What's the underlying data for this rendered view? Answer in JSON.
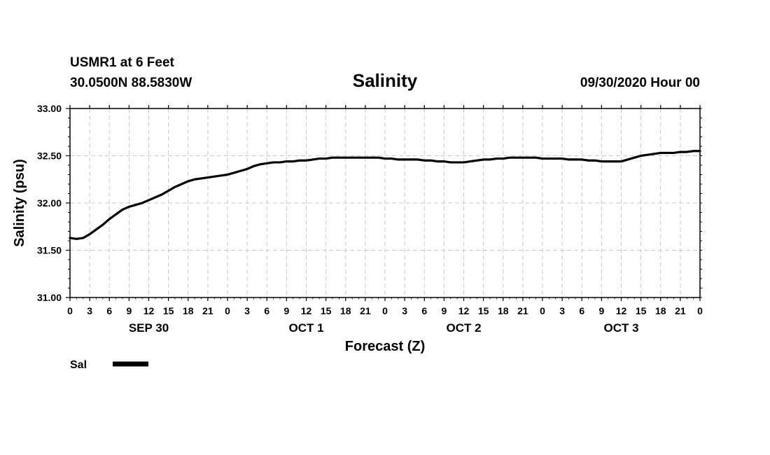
{
  "header": {
    "station": "USMR1 at 6 Feet",
    "location": "30.0500N 88.5830W",
    "run": "09/30/2020 Hour 00"
  },
  "chart_data": {
    "type": "line",
    "title": "Salinity",
    "xlabel": "Forecast (Z)",
    "ylabel": "Salinity (psu)",
    "ylim": [
      31.0,
      33.0
    ],
    "xlim": [
      0,
      96
    ],
    "y_ticks": [
      "31.00",
      "31.50",
      "32.00",
      "32.50",
      "33.00"
    ],
    "x_tick_hours": [
      0,
      3,
      6,
      9,
      12,
      15,
      18,
      21,
      24,
      27,
      30,
      33,
      36,
      39,
      42,
      45,
      48,
      51,
      54,
      57,
      60,
      63,
      66,
      69,
      72,
      75,
      78,
      81,
      84,
      87,
      90,
      93,
      96
    ],
    "x_tick_labels": [
      "0",
      "3",
      "6",
      "9",
      "12",
      "15",
      "18",
      "21",
      "0",
      "3",
      "6",
      "9",
      "12",
      "15",
      "18",
      "21",
      "0",
      "3",
      "6",
      "9",
      "12",
      "15",
      "18",
      "21",
      "0",
      "3",
      "6",
      "9",
      "12",
      "15",
      "18",
      "21",
      "0"
    ],
    "day_labels": [
      {
        "label": "SEP 30",
        "hour": 12
      },
      {
        "label": "OCT 1",
        "hour": 36
      },
      {
        "label": "OCT 2",
        "hour": 60
      },
      {
        "label": "OCT 3",
        "hour": 84
      }
    ],
    "grid": true,
    "legend_position": "bottom-left",
    "series": [
      {
        "name": "Sal",
        "color": "#000000",
        "x": [
          0,
          1,
          2,
          3,
          4,
          5,
          6,
          7,
          8,
          9,
          10,
          11,
          12,
          13,
          14,
          15,
          16,
          17,
          18,
          19,
          20,
          21,
          22,
          23,
          24,
          25,
          26,
          27,
          28,
          29,
          30,
          31,
          32,
          33,
          34,
          35,
          36,
          37,
          38,
          39,
          40,
          41,
          42,
          43,
          44,
          45,
          46,
          47,
          48,
          49,
          50,
          51,
          52,
          53,
          54,
          55,
          56,
          57,
          58,
          59,
          60,
          61,
          62,
          63,
          64,
          65,
          66,
          67,
          68,
          69,
          70,
          71,
          72,
          73,
          74,
          75,
          76,
          77,
          78,
          79,
          80,
          81,
          82,
          83,
          84,
          85,
          86,
          87,
          88,
          89,
          90,
          91,
          92,
          93,
          94,
          95,
          96
        ],
        "y": [
          31.63,
          31.62,
          31.63,
          31.67,
          31.72,
          31.77,
          31.83,
          31.88,
          31.93,
          31.96,
          31.98,
          32.0,
          32.03,
          32.06,
          32.09,
          32.13,
          32.17,
          32.2,
          32.23,
          32.25,
          32.26,
          32.27,
          32.28,
          32.29,
          32.3,
          32.32,
          32.34,
          32.36,
          32.39,
          32.41,
          32.42,
          32.43,
          32.43,
          32.44,
          32.44,
          32.45,
          32.45,
          32.46,
          32.47,
          32.47,
          32.48,
          32.48,
          32.48,
          32.48,
          32.48,
          32.48,
          32.48,
          32.48,
          32.47,
          32.47,
          32.46,
          32.46,
          32.46,
          32.46,
          32.45,
          32.45,
          32.44,
          32.44,
          32.43,
          32.43,
          32.43,
          32.44,
          32.45,
          32.46,
          32.46,
          32.47,
          32.47,
          32.48,
          32.48,
          32.48,
          32.48,
          32.48,
          32.47,
          32.47,
          32.47,
          32.47,
          32.46,
          32.46,
          32.46,
          32.45,
          32.45,
          32.44,
          32.44,
          32.44,
          32.44,
          32.46,
          32.48,
          32.5,
          32.51,
          32.52,
          32.53,
          32.53,
          32.53,
          32.54,
          32.54,
          32.55,
          32.55
        ]
      }
    ]
  }
}
